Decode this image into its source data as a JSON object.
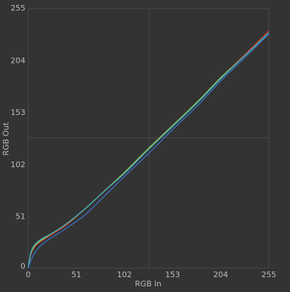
{
  "panel": {
    "x_axis_title": "RGB In",
    "y_axis_title": "RGB Out",
    "background_color": "#333333",
    "gridline_color": "#4a4a4a",
    "text_color": "#bdbdbd"
  },
  "chart_data": {
    "type": "line",
    "xlabel": "RGB In",
    "ylabel": "RGB Out",
    "xlim": [
      0,
      255
    ],
    "ylim": [
      0,
      255
    ],
    "x_ticks": [
      "0",
      "51",
      "102",
      "153",
      "204",
      "255"
    ],
    "y_ticks": [
      "0",
      "51",
      "102",
      "153",
      "204",
      "255"
    ],
    "grid": true,
    "crosshair": {
      "x": 128,
      "y": 128
    },
    "series": [
      {
        "color": "#d03a2c",
        "points": [
          [
            0,
            0
          ],
          [
            3,
            14
          ],
          [
            8,
            22
          ],
          [
            15,
            27
          ],
          [
            25,
            33
          ],
          [
            40,
            42
          ],
          [
            60,
            58
          ],
          [
            80,
            75
          ],
          [
            102,
            94
          ],
          [
            128,
            118
          ],
          [
            153,
            140
          ],
          [
            180,
            164
          ],
          [
            204,
            187
          ],
          [
            230,
            210
          ],
          [
            255,
            233
          ]
        ]
      },
      {
        "color": "#8bc34a",
        "points": [
          [
            0,
            0
          ],
          [
            3,
            15
          ],
          [
            8,
            23
          ],
          [
            15,
            28
          ],
          [
            25,
            34
          ],
          [
            40,
            43
          ],
          [
            60,
            58
          ],
          [
            80,
            75
          ],
          [
            102,
            94
          ],
          [
            128,
            118
          ],
          [
            153,
            140
          ],
          [
            180,
            164
          ],
          [
            204,
            187
          ],
          [
            230,
            209
          ],
          [
            255,
            231
          ]
        ]
      },
      {
        "color": "#3fb5c8",
        "points": [
          [
            0,
            0
          ],
          [
            3,
            16
          ],
          [
            8,
            24
          ],
          [
            15,
            29
          ],
          [
            25,
            34
          ],
          [
            40,
            43
          ],
          [
            60,
            58
          ],
          [
            80,
            75
          ],
          [
            102,
            93
          ],
          [
            128,
            117
          ],
          [
            153,
            139
          ],
          [
            180,
            163
          ],
          [
            204,
            186
          ],
          [
            230,
            209
          ],
          [
            255,
            231
          ]
        ]
      },
      {
        "color": "#3f73c8",
        "points": [
          [
            0,
            0
          ],
          [
            4,
            10
          ],
          [
            10,
            19
          ],
          [
            20,
            27
          ],
          [
            32,
            34
          ],
          [
            45,
            42
          ],
          [
            60,
            52
          ],
          [
            80,
            70
          ],
          [
            102,
            90
          ],
          [
            128,
            113
          ],
          [
            153,
            136
          ],
          [
            180,
            160
          ],
          [
            204,
            184
          ],
          [
            230,
            207
          ],
          [
            255,
            230
          ]
        ]
      }
    ]
  }
}
